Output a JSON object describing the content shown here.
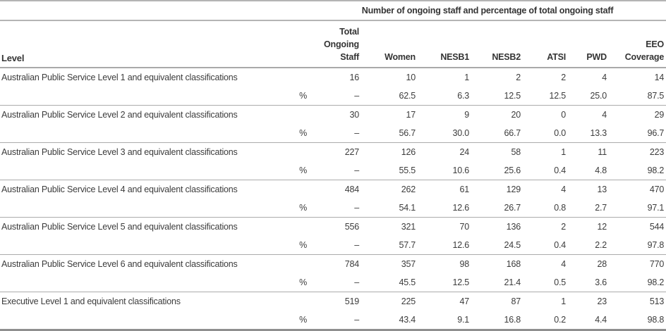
{
  "table": {
    "spanner": "Number of ongoing staff and percentage of total ongoing staff",
    "header": {
      "level": "Level",
      "columns": [
        "Total\nOngoing\nStaff",
        "Women",
        "NESB1",
        "NESB2",
        "ATSI",
        "PWD",
        "EEO\nCoverage"
      ]
    },
    "rows": [
      {
        "level": "Australian Public Service Level 1 and equivalent classifications",
        "counts": [
          "16",
          "10",
          "1",
          "2",
          "2",
          "4",
          "14"
        ],
        "percent_label": "%",
        "percents": [
          "–",
          "62.5",
          "6.3",
          "12.5",
          "12.5",
          "25.0",
          "87.5"
        ]
      },
      {
        "level": "Australian Public Service Level 2 and equivalent classifications",
        "counts": [
          "30",
          "17",
          "9",
          "20",
          "0",
          "4",
          "29"
        ],
        "percent_label": "%",
        "percents": [
          "–",
          "56.7",
          "30.0",
          "66.7",
          "0.0",
          "13.3",
          "96.7"
        ]
      },
      {
        "level": "Australian Public Service Level 3 and equivalent classifications",
        "counts": [
          "227",
          "126",
          "24",
          "58",
          "1",
          "11",
          "223"
        ],
        "percent_label": "%",
        "percents": [
          "–",
          "55.5",
          "10.6",
          "25.6",
          "0.4",
          "4.8",
          "98.2"
        ]
      },
      {
        "level": "Australian Public Service Level 4 and equivalent classifications",
        "counts": [
          "484",
          "262",
          "61",
          "129",
          "4",
          "13",
          "470"
        ],
        "percent_label": "%",
        "percents": [
          "–",
          "54.1",
          "12.6",
          "26.7",
          "0.8",
          "2.7",
          "97.1"
        ]
      },
      {
        "level": "Australian Public Service Level 5 and equivalent classifications",
        "counts": [
          "556",
          "321",
          "70",
          "136",
          "2",
          "12",
          "544"
        ],
        "percent_label": "%",
        "percents": [
          "–",
          "57.7",
          "12.6",
          "24.5",
          "0.4",
          "2.2",
          "97.8"
        ]
      },
      {
        "level": "Australian Public Service Level 6 and equivalent classifications",
        "counts": [
          "784",
          "357",
          "98",
          "168",
          "4",
          "28",
          "770"
        ],
        "percent_label": "%",
        "percents": [
          "–",
          "45.5",
          "12.5",
          "21.4",
          "0.5",
          "3.6",
          "98.2"
        ]
      },
      {
        "level": "Executive Level 1 and equivalent classifications",
        "counts": [
          "519",
          "225",
          "47",
          "87",
          "1",
          "23",
          "513"
        ],
        "percent_label": "%",
        "percents": [
          "–",
          "43.4",
          "9.1",
          "16.8",
          "0.2",
          "4.4",
          "98.8"
        ]
      }
    ]
  }
}
